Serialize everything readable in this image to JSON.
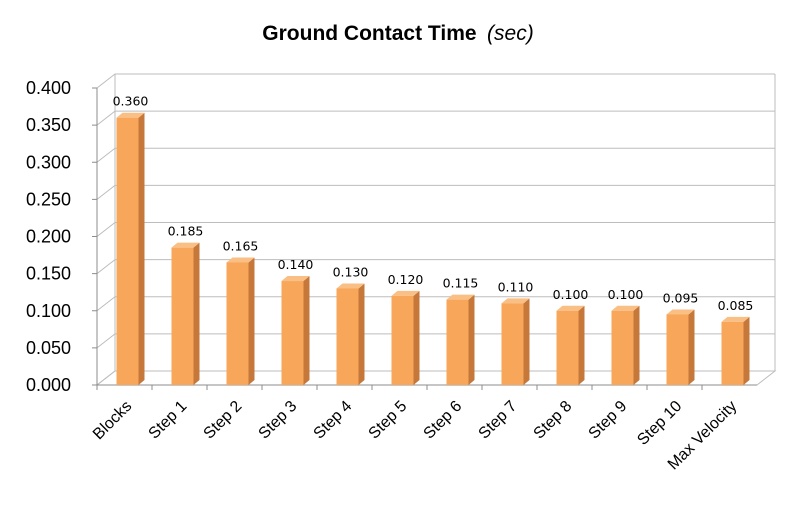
{
  "chart_data": {
    "type": "bar",
    "title": "Ground Contact Time",
    "title_unit": "(sec)",
    "categories": [
      "Blocks",
      "Step 1",
      "Step 2",
      "Step 3",
      "Step 4",
      "Step 5",
      "Step 6",
      "Step 7",
      "Step 8",
      "Step 9",
      "Step 10",
      "Max Velocity"
    ],
    "values": [
      0.36,
      0.185,
      0.165,
      0.14,
      0.13,
      0.12,
      0.115,
      0.11,
      0.1,
      0.1,
      0.095,
      0.085
    ],
    "data_labels": [
      "0.360",
      "0.185",
      "0.165",
      "0.140",
      "0.130",
      "0.120",
      "0.115",
      "0.110",
      "0.100",
      "0.100",
      "0.095",
      "0.085"
    ],
    "yticks": [
      "0.000",
      "0.050",
      "0.100",
      "0.150",
      "0.200",
      "0.250",
      "0.300",
      "0.350",
      "0.400"
    ],
    "ylim": [
      0,
      0.4
    ],
    "grid": true,
    "legend": "none",
    "bar_color": "#f7a65a",
    "bar_side_color": "#c5783a",
    "bar_top_color": "#f9bf85"
  }
}
